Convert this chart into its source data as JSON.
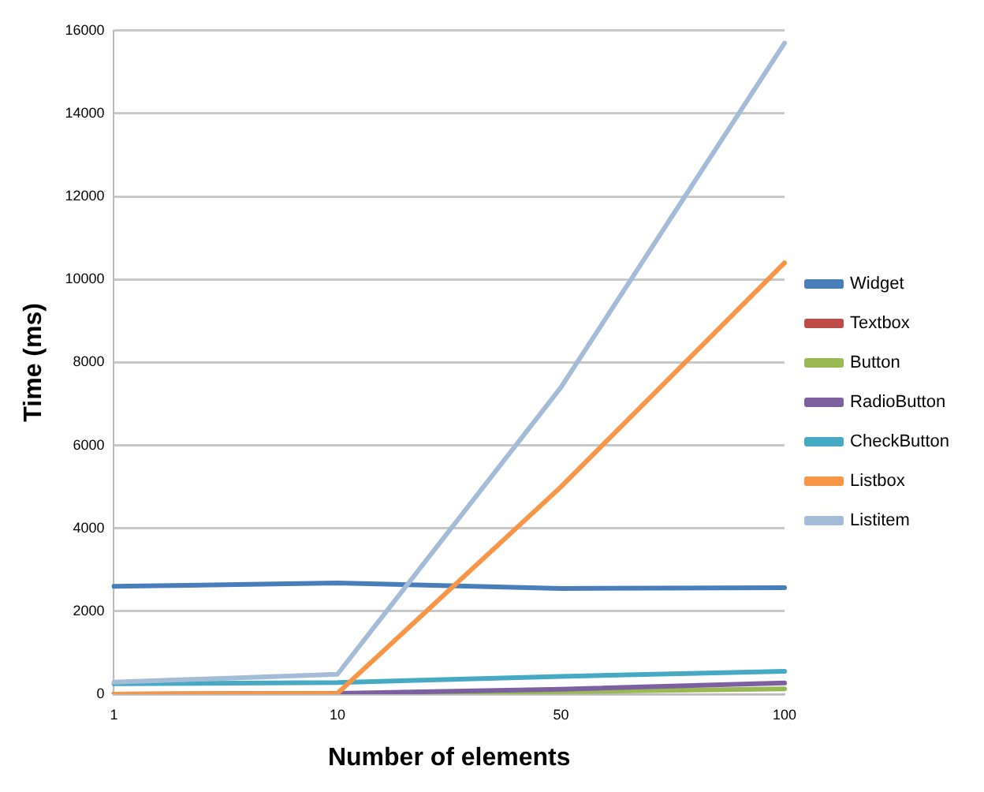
{
  "chart_data": {
    "type": "line",
    "xlabel": "Number of elements",
    "ylabel": "Time (ms)",
    "categories": [
      "1",
      "10",
      "50",
      "100"
    ],
    "series": [
      {
        "name": "Widget",
        "color": "#4a7ebb",
        "values": [
          2600,
          2680,
          2550,
          2570
        ]
      },
      {
        "name": "Textbox",
        "color": "#be4b48",
        "values": [
          null,
          null,
          null,
          null
        ]
      },
      {
        "name": "Button",
        "color": "#98b954",
        "values": [
          0,
          10,
          60,
          130
        ]
      },
      {
        "name": "RadioButton",
        "color": "#7d60a0",
        "values": [
          0,
          20,
          120,
          270
        ]
      },
      {
        "name": "CheckButton",
        "color": "#46aac5",
        "values": [
          250,
          280,
          430,
          550
        ]
      },
      {
        "name": "Listbox",
        "color": "#f79646",
        "values": [
          0,
          20,
          5000,
          10400
        ]
      },
      {
        "name": "Listitem",
        "color": "#a5bcd9",
        "values": [
          290,
          480,
          7400,
          15700
        ]
      }
    ],
    "ylim": [
      0,
      16000
    ],
    "yticks": [
      0,
      2000,
      4000,
      6000,
      8000,
      10000,
      12000,
      14000,
      16000
    ],
    "grid": "y",
    "legend": "right",
    "marker": "none",
    "line_style": "solid"
  }
}
